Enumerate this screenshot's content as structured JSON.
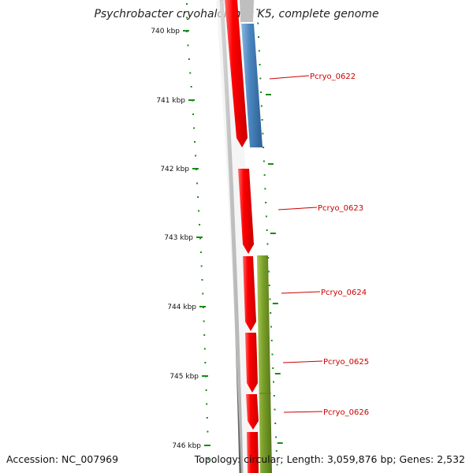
{
  "title": "Psychrobacter cryohalolentis K5, complete genome",
  "footer": {
    "accession": "Accession: NC_007969",
    "topology": "Topology: circular; Length: 3,059,876 bp; Genes: 2,532"
  },
  "ticks": [
    "740 kbp",
    "741 kbp",
    "742 kbp",
    "743 kbp",
    "744 kbp",
    "745 kbp",
    "746 kbp"
  ],
  "genes": [
    "Pcryo_0622",
    "Pcryo_0623",
    "Pcryo_0624",
    "Pcryo_0625",
    "Pcryo_0626"
  ],
  "colors": {
    "cds_red": "#ff0000",
    "cds_blue": "#4a86c0",
    "cds_green": "#7aa02a",
    "backbone": "#808080",
    "tick": "#1a8a1a",
    "label": "#cc0000"
  }
}
